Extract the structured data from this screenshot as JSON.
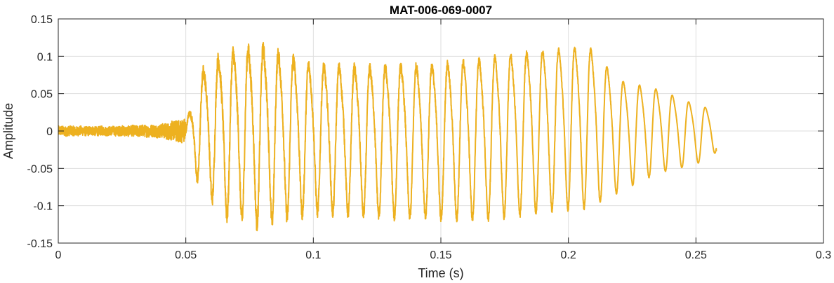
{
  "chart_data": {
    "type": "line",
    "title": "MAT-006-069-0007",
    "xlabel": "Time (s)",
    "ylabel": "Amplitude",
    "xlim": [
      0,
      0.3
    ],
    "ylim": [
      -0.15,
      0.15
    ],
    "xticks": [
      0,
      0.05,
      0.1,
      0.15,
      0.2,
      0.25,
      0.3
    ],
    "xtick_labels": [
      "0",
      "0.05",
      "0.1",
      "0.15",
      "0.2",
      "0.25",
      "0.3"
    ],
    "yticks": [
      -0.15,
      -0.1,
      -0.05,
      0,
      0.05,
      0.1,
      0.15
    ],
    "ytick_labels": [
      "-0.15",
      "-0.1",
      "-0.05",
      "0",
      "0.05",
      "0.1",
      "0.15"
    ],
    "grid": true,
    "series": [
      {
        "color": "#EDB120",
        "x_start": 0,
        "x_end": 0.258,
        "envelope": [
          {
            "x": 0.0,
            "peak": 0.004,
            "trough": -0.008
          },
          {
            "x": 0.02,
            "peak": 0.005,
            "trough": -0.006
          },
          {
            "x": 0.04,
            "peak": 0.008,
            "trough": -0.008
          },
          {
            "x": 0.05,
            "peak": 0.01,
            "trough": -0.022
          },
          {
            "x": 0.052,
            "peak": 0.04,
            "trough": -0.05
          },
          {
            "x": 0.056,
            "peak": 0.09,
            "trough": -0.07
          },
          {
            "x": 0.065,
            "peak": 0.12,
            "trough": -0.11
          },
          {
            "x": 0.079,
            "peak": 0.13,
            "trough": -0.122
          },
          {
            "x": 0.1,
            "peak": 0.102,
            "trough": -0.105
          },
          {
            "x": 0.12,
            "peak": 0.1,
            "trough": -0.11
          },
          {
            "x": 0.15,
            "peak": 0.105,
            "trough": -0.115
          },
          {
            "x": 0.17,
            "peak": 0.115,
            "trough": -0.115
          },
          {
            "x": 0.19,
            "peak": 0.125,
            "trough": -0.105
          },
          {
            "x": 0.208,
            "peak": 0.13,
            "trough": -0.1
          },
          {
            "x": 0.22,
            "peak": 0.08,
            "trough": -0.08
          },
          {
            "x": 0.235,
            "peak": 0.065,
            "trough": -0.055
          },
          {
            "x": 0.25,
            "peak": 0.042,
            "trough": -0.044
          },
          {
            "x": 0.258,
            "peak": 0.032,
            "trough": -0.028
          }
        ],
        "onset_time": 0.05,
        "period_start": 0.0058,
        "period_end": 0.0065,
        "final_value": -0.027
      }
    ]
  }
}
